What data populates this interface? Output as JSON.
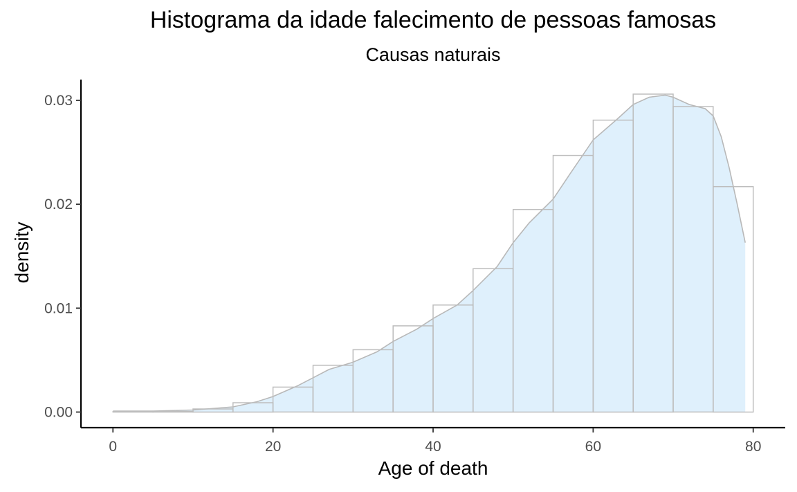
{
  "chart_data": {
    "type": "bar",
    "title": "Histograma da idade falecimento de pessoas famosas",
    "subtitle": "Causas naturais",
    "xlabel": "Age of death",
    "ylabel": "density",
    "xlim": [
      -4,
      84
    ],
    "ylim": [
      -0.0015,
      0.032
    ],
    "xticks": [
      0,
      20,
      40,
      60,
      80
    ],
    "xtick_labels": [
      "0",
      "20",
      "40",
      "60",
      "80"
    ],
    "yticks": [
      0.0,
      0.01,
      0.02,
      0.03
    ],
    "ytick_labels": [
      "0.00",
      "0.01",
      "0.02",
      "0.03"
    ],
    "grid": false,
    "colors": {
      "bar_outline": "#bdbdbd",
      "density_fill": "#dff0fc",
      "density_line": "#b8b8b8",
      "axis": "#000000"
    },
    "bins": [
      {
        "x0": 0,
        "x1": 5,
        "density": 5e-05
      },
      {
        "x0": 5,
        "x1": 10,
        "density": 5e-05
      },
      {
        "x0": 10,
        "x1": 15,
        "density": 0.0003
      },
      {
        "x0": 15,
        "x1": 20,
        "density": 0.0009
      },
      {
        "x0": 20,
        "x1": 25,
        "density": 0.0024
      },
      {
        "x0": 25,
        "x1": 30,
        "density": 0.0045
      },
      {
        "x0": 30,
        "x1": 35,
        "density": 0.006
      },
      {
        "x0": 35,
        "x1": 40,
        "density": 0.0083
      },
      {
        "x0": 40,
        "x1": 45,
        "density": 0.0103
      },
      {
        "x0": 45,
        "x1": 50,
        "density": 0.0138
      },
      {
        "x0": 50,
        "x1": 55,
        "density": 0.0195
      },
      {
        "x0": 55,
        "x1": 60,
        "density": 0.0247
      },
      {
        "x0": 60,
        "x1": 65,
        "density": 0.0281
      },
      {
        "x0": 65,
        "x1": 70,
        "density": 0.0306
      },
      {
        "x0": 70,
        "x1": 75,
        "density": 0.0294
      },
      {
        "x0": 75,
        "x1": 80,
        "density": 0.0217
      }
    ],
    "density_curve": {
      "x": [
        0,
        5,
        10,
        15,
        18,
        20,
        23,
        25,
        27,
        30,
        33,
        35,
        38,
        40,
        43,
        45,
        48,
        50,
        52,
        55,
        57,
        60,
        63,
        65,
        67,
        69,
        70,
        72,
        74,
        75,
        76,
        77,
        78,
        79
      ],
      "y": [
        0.0001,
        0.0001,
        0.0002,
        0.0005,
        0.001,
        0.0015,
        0.0025,
        0.0033,
        0.0041,
        0.0048,
        0.0058,
        0.0068,
        0.008,
        0.009,
        0.0103,
        0.0117,
        0.014,
        0.0163,
        0.0182,
        0.0205,
        0.0228,
        0.0262,
        0.0282,
        0.0296,
        0.0303,
        0.0305,
        0.0303,
        0.0296,
        0.0292,
        0.0285,
        0.0265,
        0.0235,
        0.02,
        0.0163
      ]
    }
  }
}
